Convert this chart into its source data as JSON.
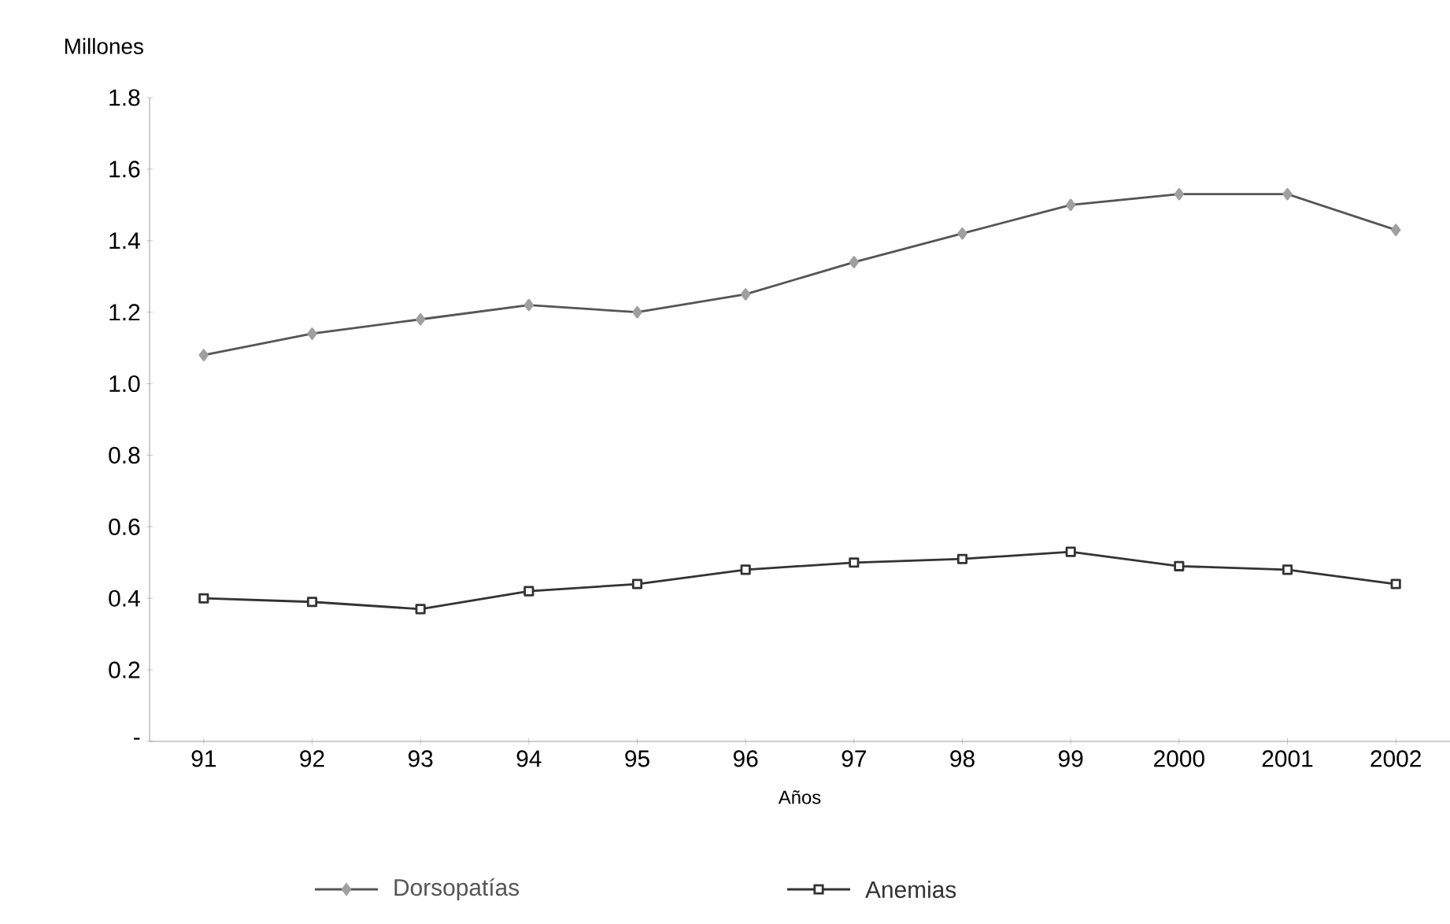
{
  "chart_data": {
    "type": "line",
    "ylabel": "Millones",
    "xlabel": "Años",
    "categories": [
      "91",
      "92",
      "93",
      "94",
      "95",
      "96",
      "97",
      "98",
      "99",
      "2000",
      "2001",
      "2002"
    ],
    "series": [
      {
        "name": "Dorsopatías",
        "color": "#555555",
        "marker": "diamond",
        "values": [
          1.08,
          1.14,
          1.18,
          1.22,
          1.2,
          1.25,
          1.34,
          1.42,
          1.5,
          1.53,
          1.53,
          1.43
        ]
      },
      {
        "name": "Anemias",
        "color": "#333333",
        "marker": "square",
        "values": [
          0.4,
          0.39,
          0.37,
          0.42,
          0.44,
          0.48,
          0.5,
          0.51,
          0.53,
          0.49,
          0.48,
          0.44
        ]
      }
    ],
    "ylim": [
      0,
      1.8
    ],
    "yticks": [
      {
        "value": 0,
        "label": "-"
      },
      0.2,
      0.4,
      0.6,
      0.8,
      {
        "value": 1.0,
        "label": "1.0"
      },
      1.2,
      1.4,
      1.6,
      1.8
    ],
    "grid": false,
    "legend": "bottom",
    "line_style": "solid"
  }
}
